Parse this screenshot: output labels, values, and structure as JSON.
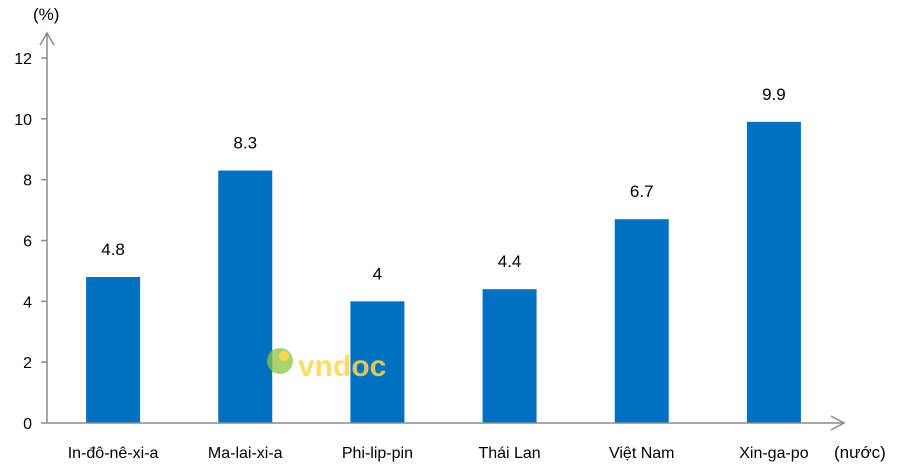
{
  "chart_data": {
    "type": "bar",
    "categories": [
      "In-đô-nê-xi-a",
      "Ma-lai-xi-a",
      "Phi-lip-pin",
      "Thái Lan",
      "Việt Nam",
      "Xin-ga-po"
    ],
    "values": [
      4.8,
      8.3,
      4,
      4.4,
      6.7,
      9.9
    ],
    "data_labels": [
      "4.8",
      "8.3",
      "4",
      "4.4",
      "6.7",
      "9.9"
    ],
    "y_ticks": [
      0,
      2,
      4,
      6,
      8,
      10,
      12
    ],
    "ylim": [
      0,
      12
    ],
    "y_unit": "(%)",
    "x_unit": "(nước)",
    "bar_color": "#0070c0",
    "grid": false,
    "legend": "none"
  },
  "watermark": {
    "text": "vndoc",
    "color": "#ffd84a"
  }
}
